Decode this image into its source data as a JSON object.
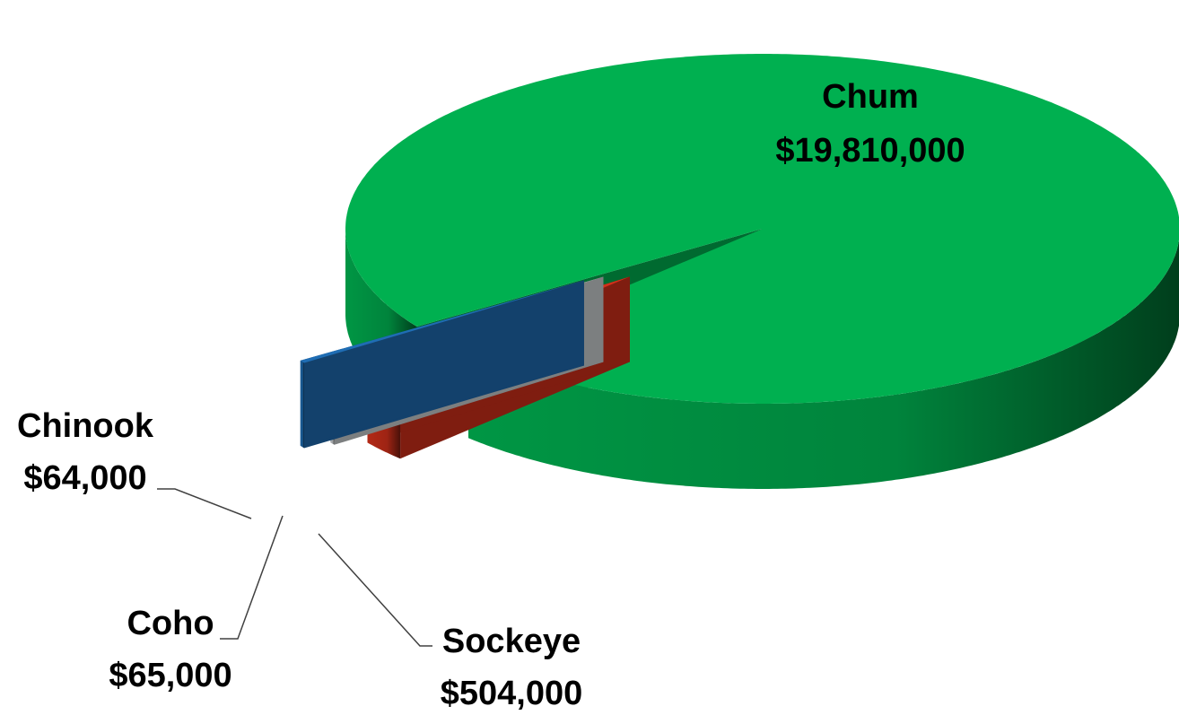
{
  "chart_data": {
    "type": "pie3d",
    "categories": [
      "Chum",
      "Sockeye",
      "Coho",
      "Chinook"
    ],
    "values": [
      19810000,
      504000,
      65000,
      64000
    ],
    "value_labels": [
      "$19,810,000",
      "$504,000",
      "$65,000",
      "$64,000"
    ],
    "colors": [
      "#00b050",
      "#d3301a",
      "#cfd3d6",
      "#1f6db4"
    ]
  }
}
